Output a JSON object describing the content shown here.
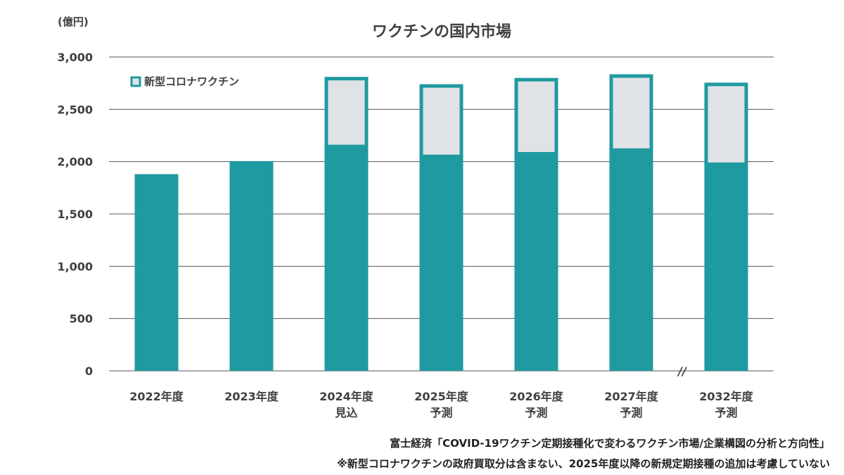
{
  "chart_data": {
    "type": "bar",
    "title": "ワクチンの国内市場",
    "unit_label": "(億円)",
    "categories": [
      [
        "2022年度",
        ""
      ],
      [
        "2023年度",
        ""
      ],
      [
        "2024年度",
        "見込"
      ],
      [
        "2025年度",
        "予測"
      ],
      [
        "2026年度",
        "予測"
      ],
      [
        "2027年度",
        "予測"
      ],
      [
        "2032年度",
        "予測"
      ]
    ],
    "series": [
      {
        "values": [
          1880,
          2005,
          2145,
          2050,
          2075,
          2110,
          1975
        ],
        "color": "#1f9aa0"
      },
      {
        "name": "新型コロナワクチン",
        "values": [
          0,
          0,
          665,
          690,
          725,
          725,
          780
        ],
        "color": "#e0e3e6",
        "outline": "#1f9aa0"
      }
    ],
    "ylim": [
      0,
      3000
    ],
    "yticks": [
      0,
      500,
      1000,
      1500,
      2000,
      2500,
      3000
    ],
    "ytick_labels": [
      "0",
      "500",
      "1,000",
      "1,500",
      "2,000",
      "2,500",
      "3,000"
    ],
    "grid": true,
    "axis_break_before_last": true,
    "axis_break_mark": "//",
    "legend_position": "top-left"
  },
  "notes": [
    "富士経済「COVID-19ワクチン定期接種化で変わるワクチン市場/企業構図の分析と方向性」",
    "※新型コロナワクチンの政府買取分は含まない、2025年度以降の新規定期接種の追加は考慮していない"
  ]
}
